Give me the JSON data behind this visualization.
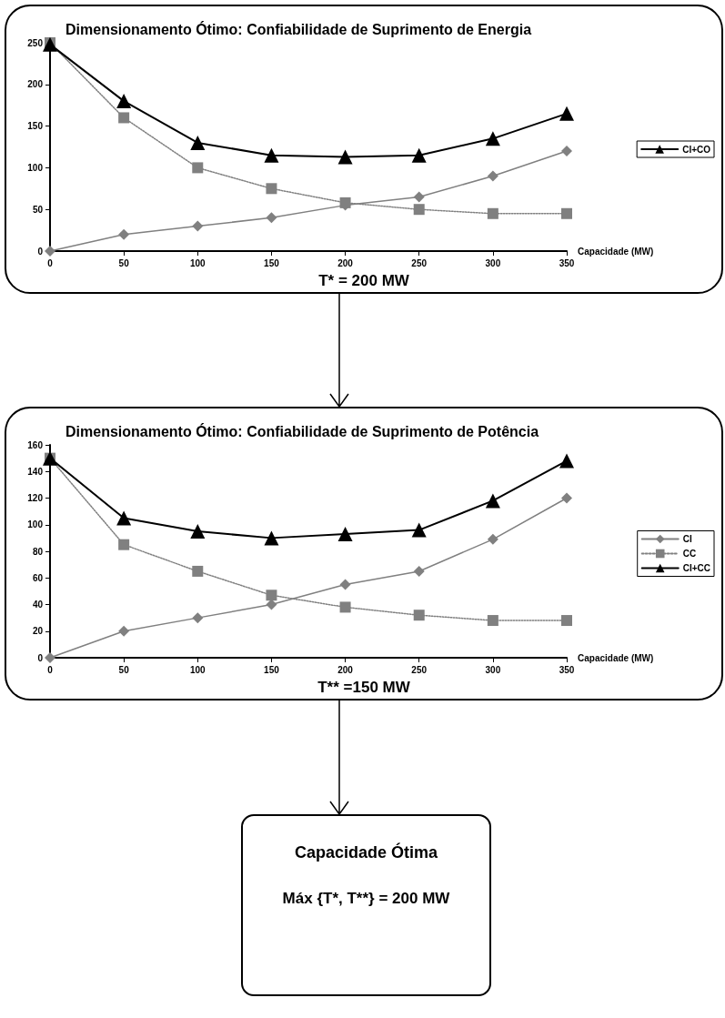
{
  "chart_data": [
    {
      "type": "line",
      "title": "Dimensionamento Ótimo: Confiabilidade de Suprimento de Energia",
      "xlabel": "Capacidade (MW)",
      "x": [
        0,
        50,
        100,
        150,
        200,
        250,
        300,
        350
      ],
      "xlim": [
        0,
        350
      ],
      "xticks": [
        0,
        50,
        100,
        150,
        200,
        250,
        300,
        350
      ],
      "ylim": [
        0,
        250
      ],
      "yticks": [
        0,
        50,
        100,
        150,
        200,
        250
      ],
      "legend": "right",
      "annotations": [
        "T* = 200 MW"
      ],
      "series": [
        {
          "color": "#808080",
          "marker": "diamond",
          "line_style": "solid",
          "values": [
            0,
            20,
            30,
            40,
            55,
            65,
            90,
            120
          ]
        },
        {
          "color": "#808080",
          "marker": "square",
          "line_style": "dotted",
          "values": [
            250,
            160,
            100,
            75,
            58,
            50,
            45,
            45
          ]
        },
        {
          "name": "CI+CO",
          "color": "#000000",
          "marker": "triangle",
          "line_style": "solid",
          "values": [
            248,
            180,
            130,
            115,
            113,
            115,
            135,
            165
          ]
        }
      ]
    },
    {
      "type": "line",
      "title": "Dimensionamento Ótimo: Confiabilidade de Suprimento de Potência",
      "xlabel": "Capacidade (MW)",
      "x": [
        0,
        50,
        100,
        150,
        200,
        250,
        300,
        350
      ],
      "xlim": [
        0,
        350
      ],
      "xticks": [
        0,
        50,
        100,
        150,
        200,
        250,
        300,
        350
      ],
      "ylim": [
        0,
        160
      ],
      "yticks": [
        0,
        20,
        40,
        60,
        80,
        100,
        120,
        140,
        160
      ],
      "legend": "right",
      "annotations": [
        "T** =150 MW"
      ],
      "series": [
        {
          "name": "CI",
          "color": "#808080",
          "marker": "diamond",
          "line_style": "solid",
          "values": [
            0,
            20,
            30,
            40,
            55,
            65,
            89,
            120
          ]
        },
        {
          "name": "CC",
          "color": "#808080",
          "marker": "square",
          "line_style": "dotted",
          "values": [
            150,
            85,
            65,
            47,
            38,
            32,
            28,
            28
          ]
        },
        {
          "name": "CI+CC",
          "color": "#000000",
          "marker": "triangle",
          "line_style": "solid",
          "values": [
            150,
            105,
            95,
            90,
            93,
            96,
            118,
            148
          ]
        }
      ]
    },
    {
      "type": "other",
      "title": "Capacidade Ótima",
      "annotations": [
        "Máx {T*, T**} = 200 MW"
      ]
    }
  ]
}
